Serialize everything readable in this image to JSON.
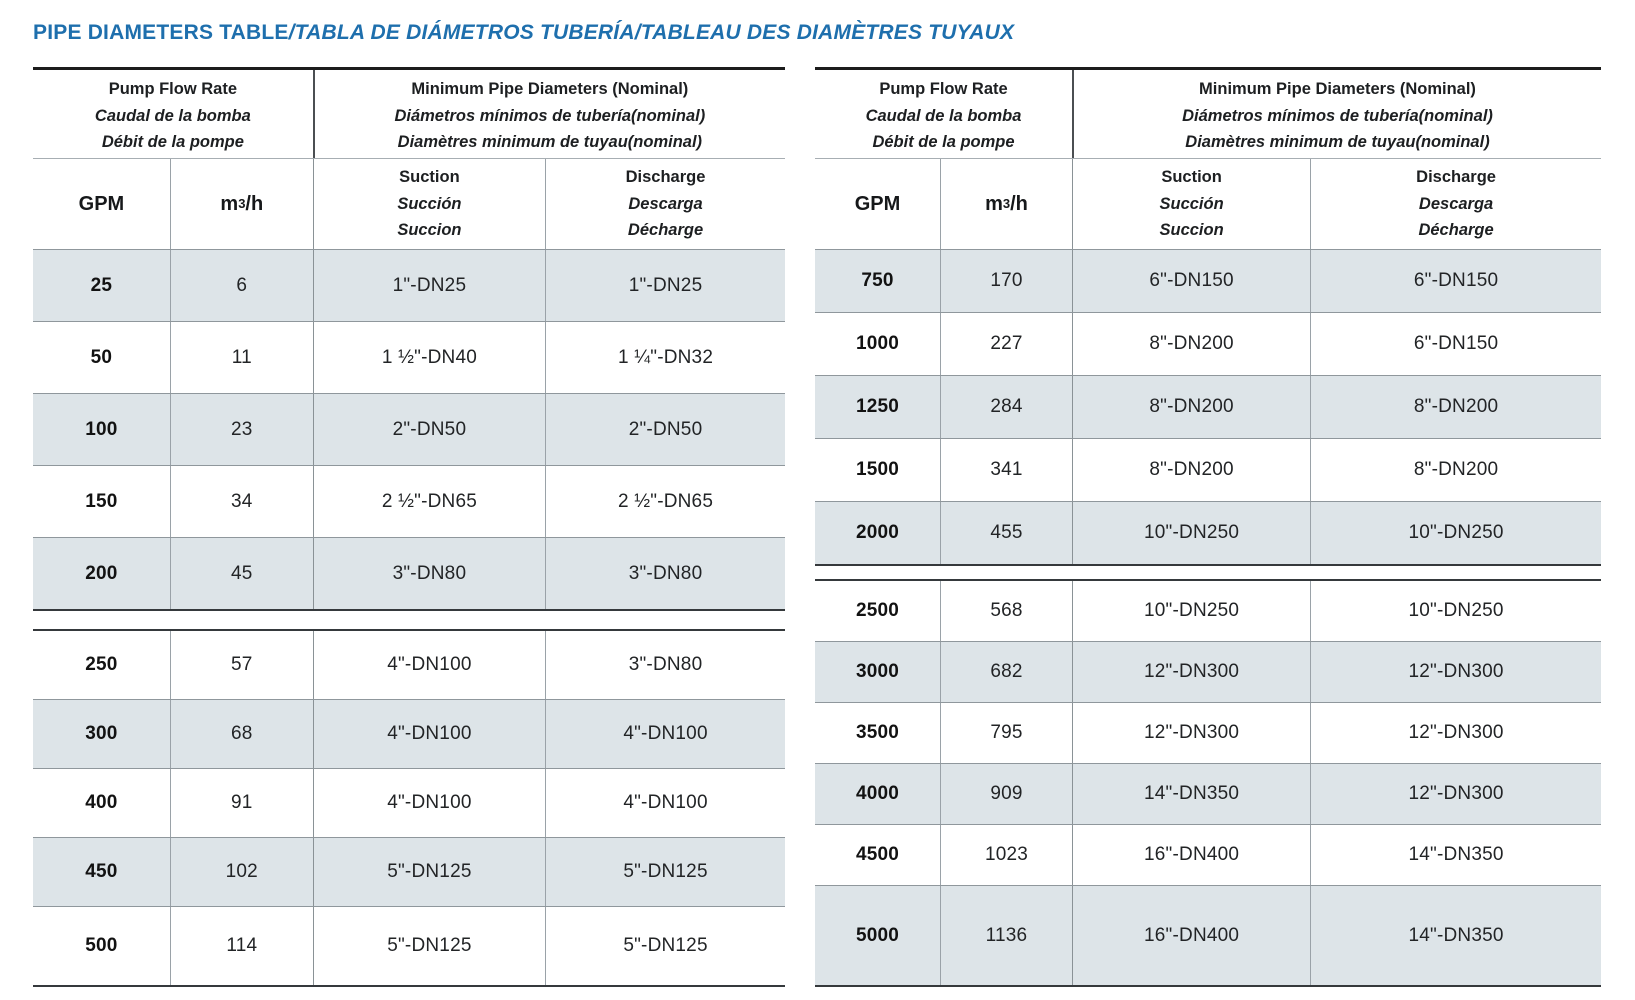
{
  "title": {
    "main": "PIPE DIAMETERS TABLE",
    "translations": "/TABLA DE DIÁMETROS TUBERÍA/TABLEAU DES DIAMÈTRES TUYAUX"
  },
  "accent_color": "#1e6fad",
  "row_shade_color": "#dde4e8",
  "column_headers": {
    "flow": {
      "en": "Pump Flow Rate",
      "es": "Caudal de la bomba",
      "fr": "Débit de la pompe"
    },
    "diameters": {
      "en": "Minimum Pipe Diameters (Nominal)",
      "es": "Diámetros mínimos de tubería(nominal)",
      "fr": "Diamètres minimum de tuyau(nominal)"
    },
    "gpm": "GPM",
    "m3h": {
      "base": "m",
      "sup": "3",
      "rest": "/h"
    },
    "suction": {
      "en": "Suction",
      "es": "Succión",
      "fr": "Succion"
    },
    "discharge": {
      "en": "Discharge",
      "es": "Descarga",
      "fr": "Décharge"
    }
  },
  "left_table": {
    "sections": [
      {
        "rows": [
          [
            "25",
            "6",
            "1\"-DN25",
            "1\"-DN25"
          ],
          [
            "50",
            "11",
            "1 ½\"-DN40",
            "1 ¼\"-DN32"
          ],
          [
            "100",
            "23",
            "2\"-DN50",
            "2\"-DN50"
          ],
          [
            "150",
            "34",
            "2 ½\"-DN65",
            "2 ½\"-DN65"
          ],
          [
            "200",
            "45",
            "3\"-DN80",
            "3\"-DN80"
          ]
        ]
      },
      {
        "rows": [
          [
            "250",
            "57",
            "4\"-DN100",
            "3\"-DN80"
          ],
          [
            "300",
            "68",
            "4\"-DN100",
            "4\"-DN100"
          ],
          [
            "400",
            "91",
            "4\"-DN100",
            "4\"-DN100"
          ],
          [
            "450",
            "102",
            "5\"-DN125",
            "5\"-DN125"
          ],
          [
            "500",
            "114",
            "5\"-DN125",
            "5\"-DN125"
          ]
        ]
      }
    ]
  },
  "right_table": {
    "sections": [
      {
        "rows": [
          [
            "750",
            "170",
            "6\"-DN150",
            "6\"-DN150"
          ],
          [
            "1000",
            "227",
            "8\"-DN200",
            "6\"-DN150"
          ],
          [
            "1250",
            "284",
            "8\"-DN200",
            "8\"-DN200"
          ],
          [
            "1500",
            "341",
            "8\"-DN200",
            "8\"-DN200"
          ],
          [
            "2000",
            "455",
            "10\"-DN250",
            "10\"-DN250"
          ]
        ]
      },
      {
        "rows": [
          [
            "2500",
            "568",
            "10\"-DN250",
            "10\"-DN250"
          ],
          [
            "3000",
            "682",
            "12\"-DN300",
            "12\"-DN300"
          ],
          [
            "3500",
            "795",
            "12\"-DN300",
            "12\"-DN300"
          ],
          [
            "4000",
            "909",
            "14\"-DN350",
            "12\"-DN300"
          ],
          [
            "4500",
            "1023",
            "16\"-DN400",
            "14\"-DN350"
          ],
          [
            "5000",
            "1136",
            "16\"-DN400",
            "14\"-DN350"
          ]
        ]
      }
    ]
  }
}
